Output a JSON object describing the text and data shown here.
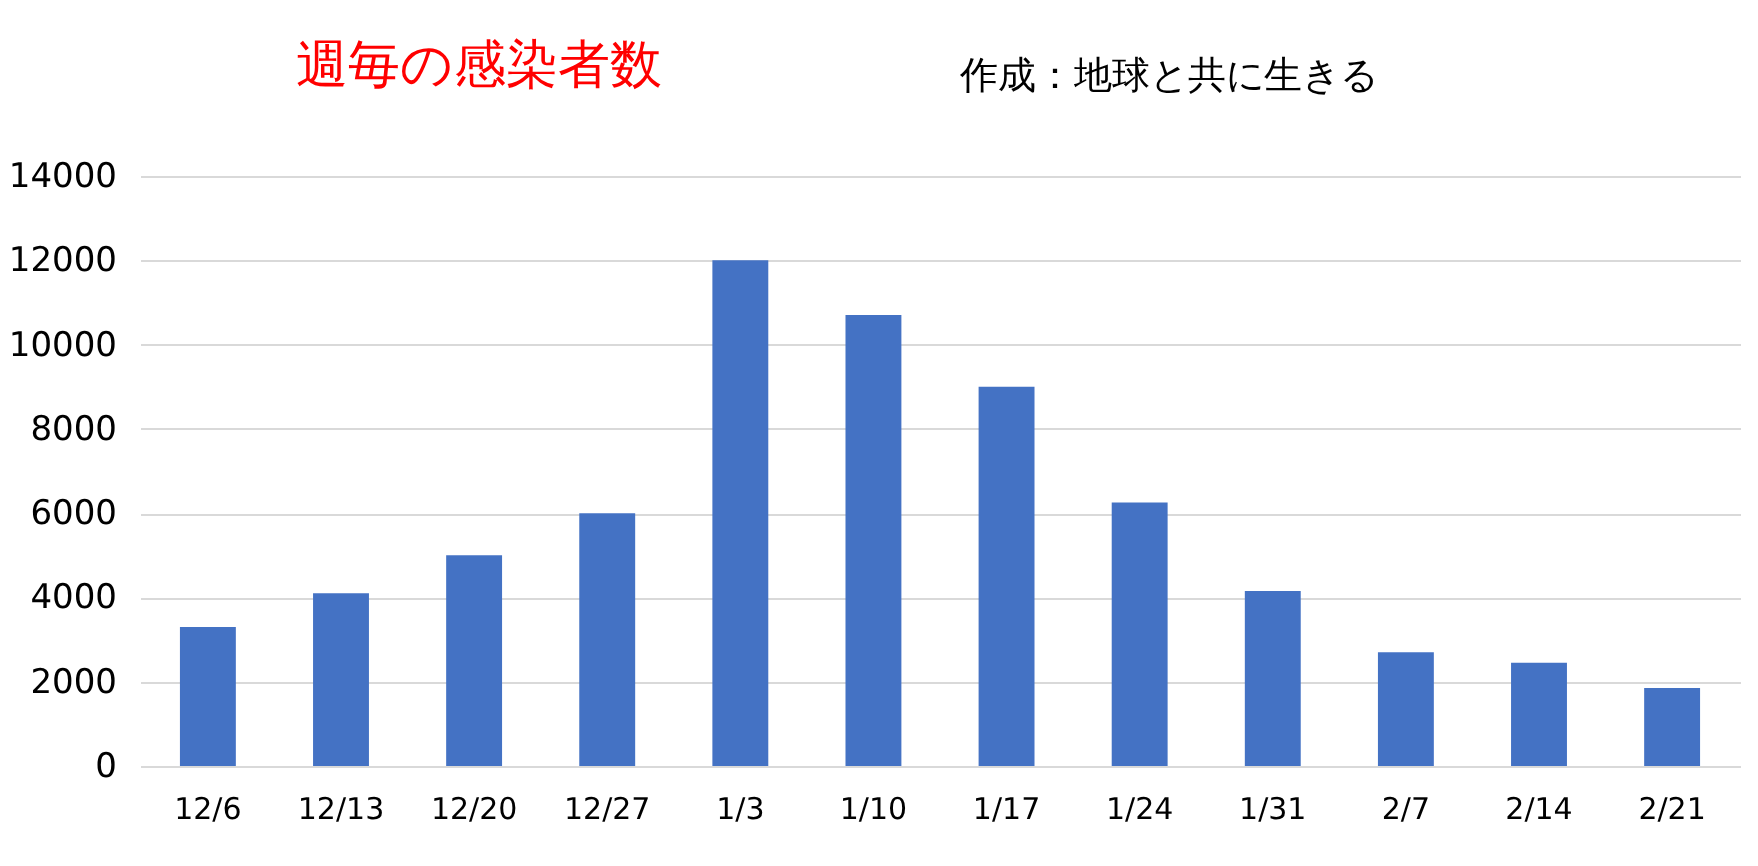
{
  "chart_data": {
    "type": "bar",
    "title": "週毎の感染者数",
    "annotations": [
      "作成：地球と共に生きる"
    ],
    "categories": [
      "12/6",
      "12/13",
      "12/20",
      "12/27",
      "1/3",
      "1/10",
      "1/17",
      "1/24",
      "1/31",
      "2/7",
      "2/14",
      "2/21"
    ],
    "values": [
      3300,
      4100,
      5000,
      6000,
      12000,
      10700,
      9000,
      6250,
      4150,
      2700,
      2450,
      1850
    ],
    "color": "#4472c4",
    "ylim": [
      0,
      14000
    ],
    "yticks": [
      0,
      2000,
      4000,
      6000,
      8000,
      10000,
      12000,
      14000
    ],
    "grid": "y"
  }
}
